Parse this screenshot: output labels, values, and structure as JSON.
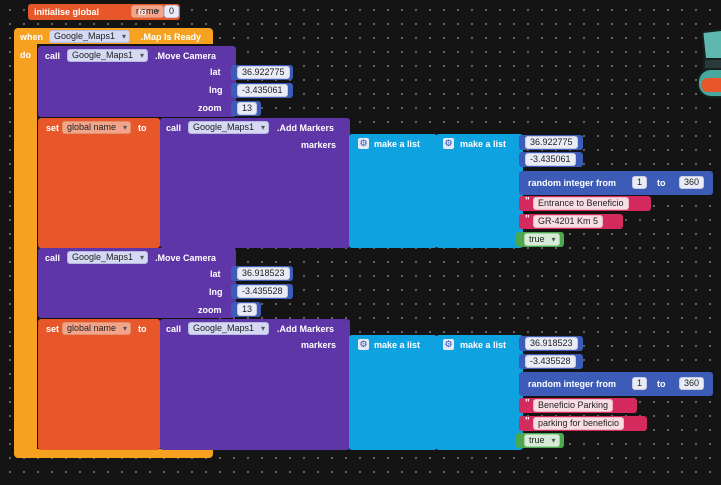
{
  "colors": {
    "background": "#141414",
    "variables": "#e8572a",
    "event": "#f6a220",
    "components": "#5e36a8",
    "lists": "#0ea2e0",
    "math": "#3c5cb8",
    "text": "#d42a5e",
    "logic": "#4ca84e"
  },
  "init": {
    "label": "initialise global",
    "name": "name",
    "to": "to",
    "value": "0"
  },
  "event": {
    "when": "when",
    "component": "Google_Maps1",
    "name": ".Map Is Ready",
    "do": "do"
  },
  "keywords": {
    "call": "call",
    "set": "set",
    "to": "to",
    "move_camera": ".Move Camera",
    "add_markers": ".Add Markers",
    "lat": "lat",
    "lng": "lng",
    "zoom": "zoom",
    "markers": "markers",
    "make_list": "make a list",
    "random": "random integer from",
    "rand_to": "to",
    "global_name": "global name",
    "component": "Google_Maps1"
  },
  "camera1": {
    "lat": "36.922775",
    "lng": "-3.435061",
    "zoom": "13"
  },
  "marker1": {
    "lat": "36.922775",
    "lng": "-3.435061",
    "rand_from": "1",
    "rand_to": "360",
    "title": "Entrance to Beneficio",
    "description": "GR-4201 Km 5",
    "flag": "true"
  },
  "camera2": {
    "lat": "36.918523",
    "lng": "-3.435528",
    "zoom": "13"
  },
  "marker2": {
    "lat": "36.918523",
    "lng": "-3.435528",
    "rand_from": "1",
    "rand_to": "360",
    "title": "Beneficio Parking",
    "description": "parking for beneficio",
    "flag": "true"
  }
}
